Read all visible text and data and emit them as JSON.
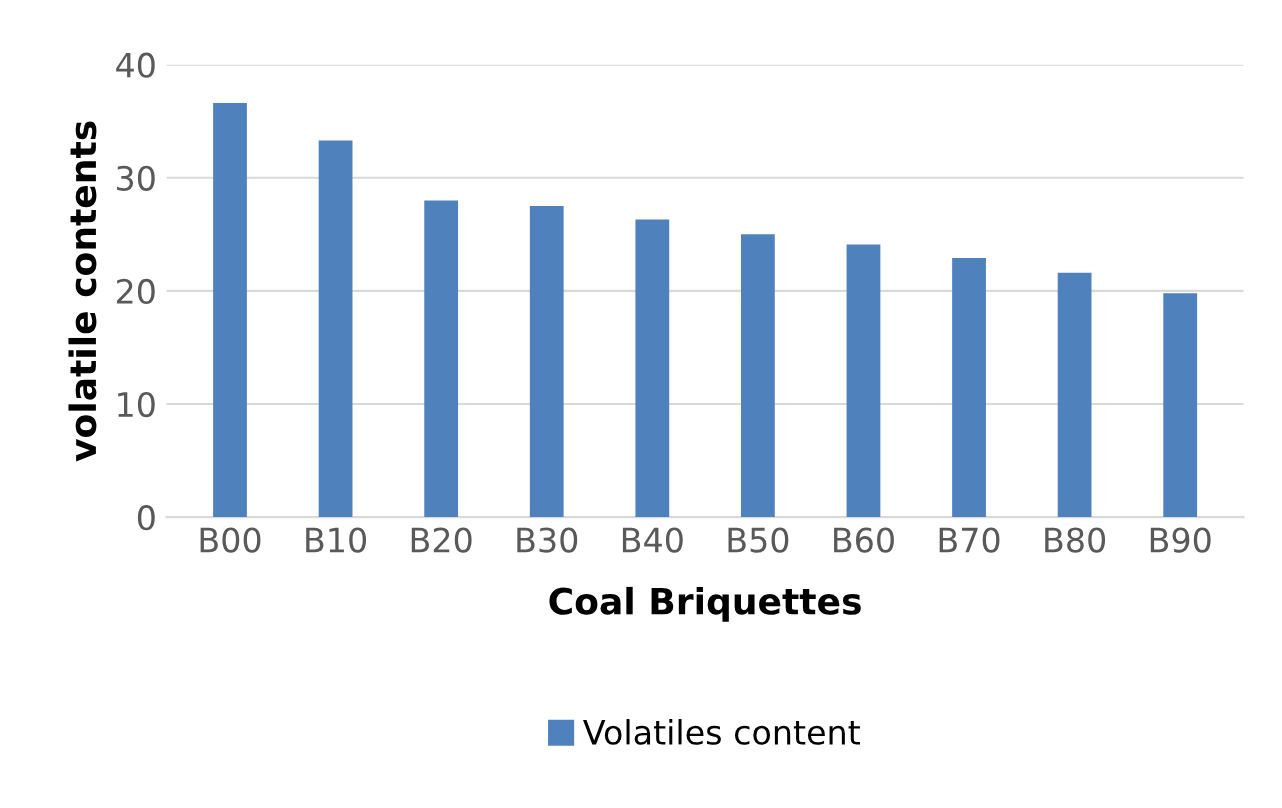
{
  "chart_data": {
    "type": "bar",
    "xlabel": "Coal Briquettes",
    "ylabel": "volatile contents",
    "categories": [
      "B00",
      "B10",
      "B20",
      "B30",
      "B40",
      "B50",
      "B60",
      "B70",
      "B80",
      "B90"
    ],
    "series": [
      {
        "name": "Volatiles content",
        "color": "#4f81bd",
        "values": [
          36.6,
          33.3,
          28.0,
          27.5,
          26.3,
          25.0,
          24.1,
          22.9,
          21.6,
          19.8
        ]
      }
    ],
    "ylim": [
      0,
      40
    ],
    "yticks": [
      0,
      10,
      20,
      30,
      40
    ],
    "grid": "y",
    "legend": "bottom"
  }
}
